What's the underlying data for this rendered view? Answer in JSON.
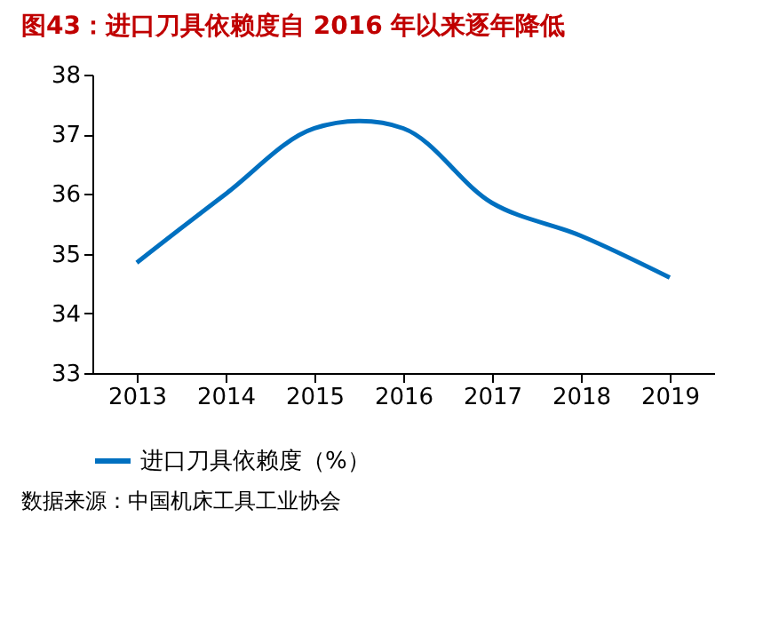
{
  "chart_data": {
    "type": "line",
    "title": "图43：进口刀具依赖度自 2016 年以来逐年降低",
    "categories": [
      "2013",
      "2014",
      "2015",
      "2016",
      "2017",
      "2018",
      "2019"
    ],
    "series": [
      {
        "name": "进口刀具依赖度（%）",
        "color": "#0070c0",
        "values": [
          34.85,
          36.0,
          37.1,
          37.1,
          35.85,
          35.3,
          34.6
        ]
      }
    ],
    "ylim": [
      33,
      38
    ],
    "yticks": [
      33,
      34,
      35,
      36,
      37,
      38
    ],
    "grid": false,
    "legend": "bottom",
    "marker": "none",
    "line_style": "solid",
    "annotations": [
      "数据来源：中国机床工具工业协会"
    ]
  }
}
